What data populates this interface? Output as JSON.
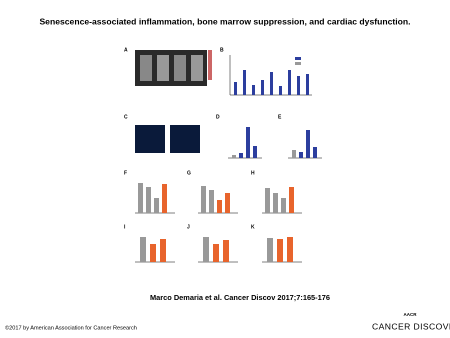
{
  "header": {
    "title": "Senescence-associated inflammation, bone marrow suppression, and cardiac dysfunction."
  },
  "figure": {
    "panels": [
      "A",
      "B",
      "C",
      "D",
      "E",
      "F",
      "G",
      "H",
      "I",
      "J",
      "K"
    ]
  },
  "citation": "Marco Demaria et al. Cancer Discov 2017;7:165-176",
  "footer": {
    "copyright": "©2017 by American Association for Cancer Research",
    "publisher_mark": "AACR",
    "journal": "CANCER DISCOVERY"
  }
}
